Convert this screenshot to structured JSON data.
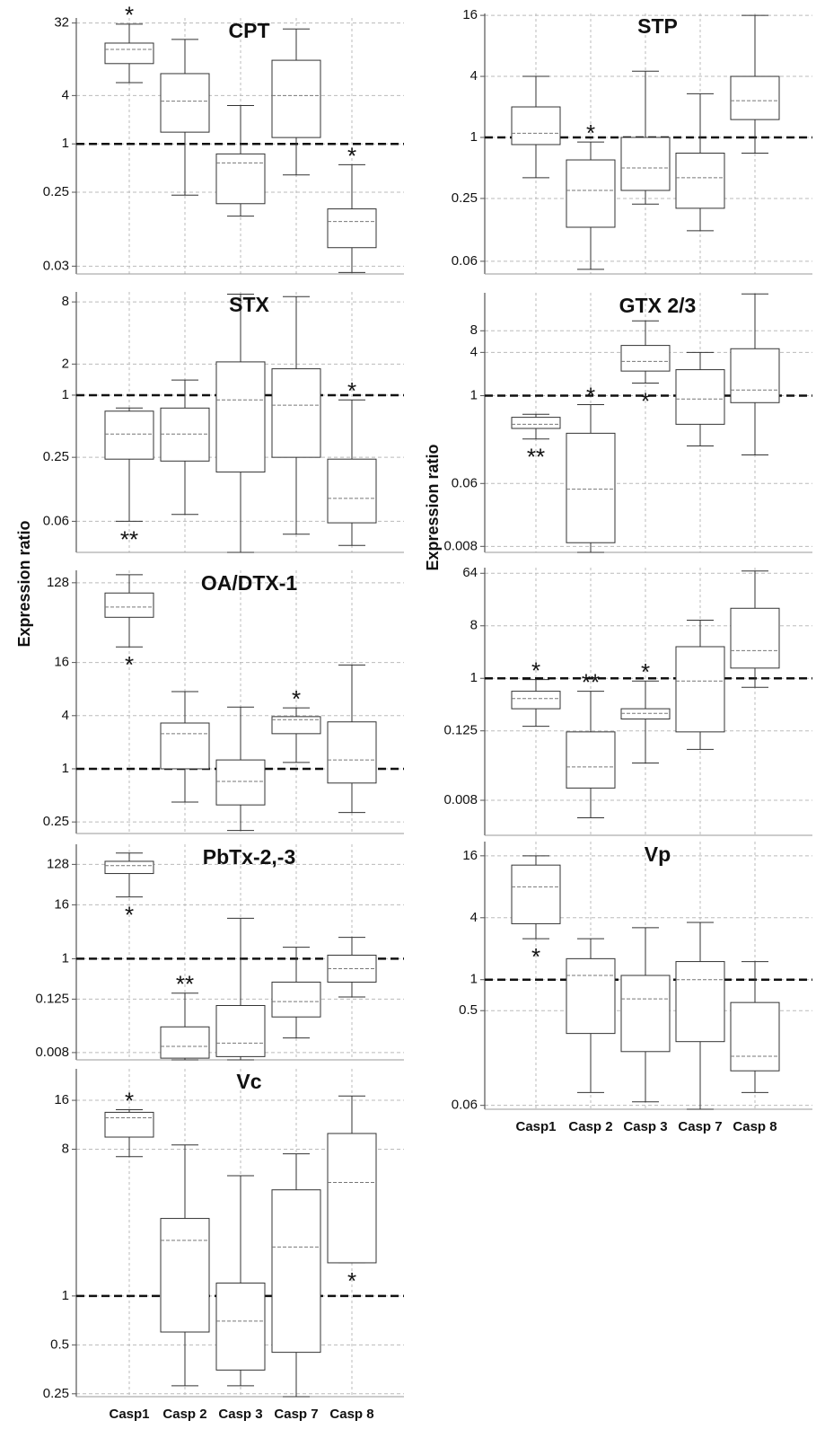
{
  "ylabel": "Expression ratio",
  "categories": [
    "Casp1",
    "Casp 2",
    "Casp 3",
    "Casp 7",
    "Casp 8"
  ],
  "chart_data": [
    {
      "type": "box",
      "title": "CPT",
      "log_scale": true,
      "grid": true,
      "refline": 1,
      "ylim": [
        0.024,
        37
      ],
      "yticks": [
        32,
        4,
        1,
        0.25,
        0.03
      ],
      "whislo": [
        5.8,
        0.23,
        0.126,
        0.41,
        0.025
      ],
      "q1": [
        10,
        1.4,
        0.18,
        1.2,
        0.051
      ],
      "med": [
        15,
        3.4,
        0.58,
        4,
        0.108
      ],
      "q3": [
        18,
        7.5,
        0.75,
        11,
        0.155
      ],
      "whishi": [
        31,
        20,
        3,
        27,
        0.55
      ],
      "above": [
        "*",
        null,
        null,
        null,
        "*"
      ],
      "below": [
        null,
        null,
        null,
        null,
        null
      ]
    },
    {
      "type": "box",
      "title": "STX",
      "log_scale": true,
      "grid": true,
      "refline": 1,
      "ylim": [
        0.03,
        10
      ],
      "yticks": [
        8,
        2,
        1,
        0.25,
        0.06
      ],
      "whislo": [
        0.06,
        0.07,
        0.03,
        0.045,
        0.035
      ],
      "q1": [
        0.24,
        0.23,
        0.18,
        0.25,
        0.058
      ],
      "med": [
        0.42,
        0.42,
        0.9,
        0.8,
        0.1
      ],
      "q3": [
        0.7,
        0.75,
        2.1,
        1.8,
        0.24
      ],
      "whishi": [
        0.75,
        1.4,
        9.5,
        9,
        0.9
      ],
      "above": [
        null,
        null,
        null,
        null,
        "*"
      ],
      "below": [
        "**",
        null,
        null,
        null,
        null
      ]
    },
    {
      "type": "box",
      "title": "OA/DTX-1",
      "log_scale": true,
      "grid": true,
      "refline": 1,
      "ylim": [
        0.185,
        177
      ],
      "yticks": [
        128,
        16,
        4,
        1,
        0.25
      ],
      "whislo": [
        24,
        0.42,
        0.2,
        1.18,
        0.32
      ],
      "q1": [
        52,
        1,
        0.39,
        2.5,
        0.69
      ],
      "med": [
        68,
        2.5,
        0.72,
        3.6,
        1.26
      ],
      "q3": [
        98,
        3.3,
        1.26,
        3.9,
        3.4
      ],
      "whishi": [
        158,
        7.5,
        5,
        4.9,
        15
      ],
      "above": [
        null,
        null,
        null,
        "*",
        null
      ],
      "below": [
        "*",
        null,
        null,
        null,
        null
      ]
    },
    {
      "type": "box",
      "title": "PbTx-2,-3",
      "log_scale": true,
      "grid": true,
      "refline": 1,
      "ylim": [
        0.0055,
        360
      ],
      "yticks": [
        128,
        16,
        1,
        0.125,
        0.008
      ],
      "whislo": [
        24,
        0.0055,
        0.0055,
        0.017,
        0.14
      ],
      "q1": [
        80,
        0.006,
        0.0065,
        0.05,
        0.3
      ],
      "med": [
        120,
        0.011,
        0.013,
        0.11,
        0.6
      ],
      "q3": [
        150,
        0.03,
        0.09,
        0.3,
        1.2
      ],
      "whishi": [
        230,
        0.17,
        8,
        1.8,
        3
      ],
      "above": [
        null,
        "**",
        null,
        null,
        null
      ],
      "below": [
        "*",
        null,
        null,
        null,
        null
      ]
    },
    {
      "type": "box",
      "title": "Vc",
      "log_scale": true,
      "grid": true,
      "refline": 1,
      "show_categories": true,
      "ylim": [
        0.24,
        25
      ],
      "yticks": [
        16,
        8,
        1,
        0.5,
        0.25
      ],
      "whislo": [
        7.2,
        0.28,
        0.28,
        0.24,
        1.6
      ],
      "q1": [
        9.5,
        0.6,
        0.35,
        0.45,
        1.6
      ],
      "med": [
        12.5,
        2.2,
        0.7,
        2,
        5
      ],
      "q3": [
        13.5,
        3,
        1.2,
        4.5,
        10
      ],
      "whishi": [
        14,
        8.5,
        5.5,
        7.5,
        17
      ],
      "above": [
        "*",
        null,
        null,
        null,
        null
      ],
      "below": [
        null,
        null,
        null,
        null,
        "*"
      ]
    },
    {
      "type": "box",
      "title": "STP",
      "log_scale": true,
      "grid": true,
      "refline": 1,
      "ylim": [
        0.045,
        16.7
      ],
      "yticks": [
        16,
        4,
        1,
        0.25,
        0.06
      ],
      "whislo": [
        0.4,
        0.05,
        0.22,
        0.12,
        0.7
      ],
      "q1": [
        0.85,
        0.13,
        0.3,
        0.2,
        1.5
      ],
      "med": [
        1.1,
        0.3,
        0.5,
        0.4,
        2.3
      ],
      "q3": [
        2,
        0.6,
        1,
        0.7,
        4
      ],
      "whishi": [
        4,
        0.9,
        4.5,
        2.7,
        16
      ],
      "above": [
        null,
        "*",
        null,
        null,
        null
      ],
      "below": [
        null,
        null,
        null,
        null,
        null
      ]
    },
    {
      "type": "box",
      "title": "GTX 2/3",
      "log_scale": true,
      "grid": true,
      "refline": 1,
      "ylim": [
        0.0066,
        27
      ],
      "yticks": [
        8,
        4,
        1,
        0.06,
        0.008
      ],
      "whislo": [
        0.25,
        0.0066,
        1.5,
        0.2,
        0.15
      ],
      "q1": [
        0.35,
        0.009,
        2.2,
        0.4,
        0.8
      ],
      "med": [
        0.4,
        0.05,
        3,
        0.9,
        1.2
      ],
      "q3": [
        0.5,
        0.3,
        5,
        2.3,
        4.5
      ],
      "whishi": [
        0.55,
        0.75,
        11,
        4,
        26
      ],
      "above": [
        null,
        "*",
        null,
        null,
        null
      ],
      "below": [
        "**",
        null,
        "*",
        null,
        null
      ]
    },
    {
      "type": "box",
      "log_scale": true,
      "grid": true,
      "refline": 1,
      "ylim": [
        0.002,
        80
      ],
      "yticks": [
        64,
        8,
        1,
        0.125,
        0.008
      ],
      "whislo": [
        0.15,
        0.004,
        0.035,
        0.06,
        0.7
      ],
      "q1": [
        0.3,
        0.013,
        0.2,
        0.12,
        1.5
      ],
      "med": [
        0.45,
        0.03,
        0.25,
        0.9,
        3
      ],
      "q3": [
        0.6,
        0.12,
        0.3,
        3.5,
        16
      ],
      "whishi": [
        0.95,
        0.6,
        0.9,
        10,
        70
      ],
      "above": [
        "*",
        "**",
        "*",
        null,
        null
      ],
      "below": [
        null,
        null,
        null,
        null,
        null
      ]
    },
    {
      "type": "box",
      "title": "Vp",
      "log_scale": true,
      "grid": true,
      "refline": 1,
      "show_categories": true,
      "ylim": [
        0.055,
        22
      ],
      "yticks": [
        16,
        4,
        1,
        0.5,
        0.06
      ],
      "whislo": [
        2.5,
        0.08,
        0.065,
        0.055,
        0.08
      ],
      "q1": [
        3.5,
        0.3,
        0.2,
        0.25,
        0.13
      ],
      "med": [
        8,
        1.1,
        0.65,
        1,
        0.18
      ],
      "q3": [
        13,
        1.6,
        1.1,
        1.5,
        0.6
      ],
      "whishi": [
        16,
        2.5,
        3.2,
        3.6,
        1.5
      ],
      "above": [
        null,
        null,
        null,
        null,
        null
      ],
      "below": [
        "*",
        null,
        null,
        null,
        null
      ]
    }
  ]
}
